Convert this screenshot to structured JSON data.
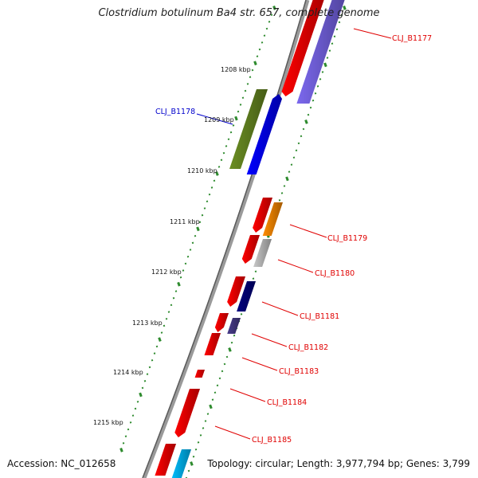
{
  "title": "Clostridium botulinum Ba4 str. 657, complete genome",
  "footer": {
    "accession": "Accession: NC_012658",
    "topology": "Topology: circular; Length: 3,977,794 bp; Genes: 3,799"
  },
  "colors": {
    "backbone": "#7f7f7f",
    "tick_dots": "#2e8b2e",
    "label_link_red": "#e00000",
    "label_link_blue": "#0000cc"
  },
  "tick_labels": [
    "1208 kbp",
    "1209 kbp",
    "1210 kbp",
    "1211 kbp",
    "1212 kbp",
    "1213 kbp",
    "1214 kbp",
    "1215 kbp"
  ],
  "feature_labels": [
    {
      "id": "b1177",
      "text": "CLJ_B1177",
      "color": "#e00000"
    },
    {
      "id": "b1178",
      "text": "CLJ_B1178",
      "color": "#0000cc"
    },
    {
      "id": "b1179",
      "text": "CLJ_B1179",
      "color": "#e00000"
    },
    {
      "id": "b1180",
      "text": "CLJ_B1180",
      "color": "#e00000"
    },
    {
      "id": "b1181",
      "text": "CLJ_B1181",
      "color": "#e00000"
    },
    {
      "id": "b1182",
      "text": "CLJ_B1182",
      "color": "#e00000"
    },
    {
      "id": "b1183",
      "text": "CLJ_B1183",
      "color": "#e00000"
    },
    {
      "id": "b1184",
      "text": "CLJ_B1184",
      "color": "#e00000"
    },
    {
      "id": "b1185",
      "text": "CLJ_B1185",
      "color": "#e00000"
    }
  ],
  "feature_colors": {
    "cds": "#ff0000",
    "slate": "#7b68ee",
    "olive": "#6b8e23",
    "blue": "#0000ff",
    "orange": "#ff8c00",
    "gray": "#c8c8c8",
    "navy": "#000080",
    "darkslate": "#483d8b",
    "cyan": "#00bfff"
  }
}
